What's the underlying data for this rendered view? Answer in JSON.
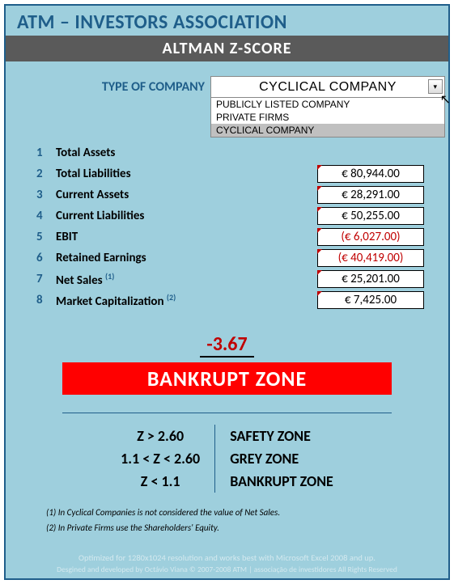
{
  "header": {
    "title": "ATM – INVESTORS ASSOCIATION",
    "subtitle": "ALTMAN Z-SCORE"
  },
  "company_type": {
    "label": "TYPE OF COMPANY",
    "selected": "CYCLICAL COMPANY",
    "options": [
      "PUBLICLY LISTED COMPANY",
      "PRIVATE FIRMS",
      "CYCLICAL COMPANY"
    ],
    "highlighted_index": 2
  },
  "inputs": [
    {
      "n": "1",
      "label": "Total Assets",
      "sup": "",
      "value": "",
      "neg": false,
      "show_cell": false
    },
    {
      "n": "2",
      "label": "Total Liabilities",
      "sup": "",
      "value": "€ 80,944.00",
      "neg": false,
      "show_cell": true
    },
    {
      "n": "3",
      "label": "Current Assets",
      "sup": "",
      "value": "€ 28,291.00",
      "neg": false,
      "show_cell": true
    },
    {
      "n": "4",
      "label": "Current Liabilities",
      "sup": "",
      "value": "€ 50,255.00",
      "neg": false,
      "show_cell": true
    },
    {
      "n": "5",
      "label": "EBIT",
      "sup": "",
      "value": "(€ 6,027.00)",
      "neg": true,
      "show_cell": true
    },
    {
      "n": "6",
      "label": "Retained Earnings",
      "sup": "",
      "value": "(€ 40,419.00)",
      "neg": true,
      "show_cell": true
    },
    {
      "n": "7",
      "label": "Net Sales ",
      "sup": "(1)",
      "value": "€ 25,201.00",
      "neg": false,
      "show_cell": true
    },
    {
      "n": "8",
      "label": "Market Capitalization ",
      "sup": "(2)",
      "value": "€ 7,425.00",
      "neg": false,
      "show_cell": true
    }
  ],
  "result": {
    "score": "-3.67",
    "zone": "BANKRUPT ZONE",
    "zone_color": "#ff0000"
  },
  "legend": [
    {
      "cond": "Z > 2.60",
      "zone": "SAFETY ZONE"
    },
    {
      "cond": "1.1 < Z < 2.60",
      "zone": "GREY ZONE"
    },
    {
      "cond": "Z < 1.1",
      "zone": "BANKRUPT ZONE"
    }
  ],
  "notes": {
    "n1": "(1)  In Cyclical Companies is not considered the value of Net Sales.",
    "n2": "(2)  In Private Firms use the Shareholders' Equity."
  },
  "footer": {
    "line1": "Optimized for 1280x1024 resolution and works best with Microsoft Excel 2008 and up.",
    "line2": "Desgined and developed by Octávio Viana © 2007-2008 ATM | associação de investidores All Rights Reserved"
  },
  "colors": {
    "panel_bg": "#9ecfdd",
    "border": "#1f5e8a",
    "accent": "#1f5e8a",
    "subtitle_bg": "#5a5a5a",
    "negative": "#c00000"
  }
}
